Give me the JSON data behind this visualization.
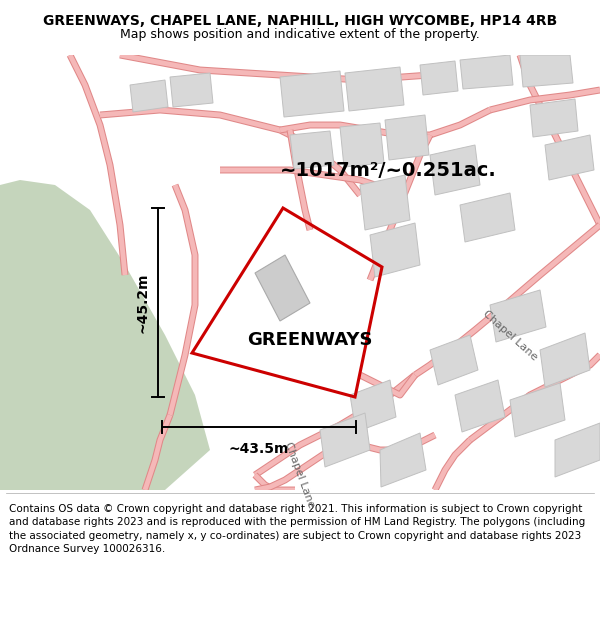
{
  "title": "GREENWAYS, CHAPEL LANE, NAPHILL, HIGH WYCOMBE, HP14 4RB",
  "subtitle": "Map shows position and indicative extent of the property.",
  "footer_line1": "Contains OS data © Crown copyright and database right 2021. This information is subject to Crown copyright and database rights 2023 and is reproduced with the permission of",
  "footer_line2": "HM Land Registry. The polygons (including the associated geometry, namely x, y co-ordinates) are subject to Crown copyright and database rights 2023 Ordnance Survey",
  "footer_line3": "100026316.",
  "area_label": "~1017m²/~0.251ac.",
  "property_label": "GREENWAYS",
  "dim_w": "~43.5m",
  "dim_h": "~45.2m",
  "chapel_lane_r": "Chapel Lane",
  "chapel_lane_b": "Chapel Lane",
  "map_bg": "#f0f0f0",
  "green_color": "#c5d5bc",
  "road_fill": "#f5b8b8",
  "road_edge": "#e08888",
  "building_fill": "#d8d8d8",
  "building_edge": "#c0c0c0",
  "property_color": "#cc0000",
  "title_fs": 10,
  "subtitle_fs": 9,
  "footer_fs": 7.5,
  "area_fs": 14,
  "prop_label_fs": 13,
  "dim_fs": 10,
  "road_label_fs": 8
}
